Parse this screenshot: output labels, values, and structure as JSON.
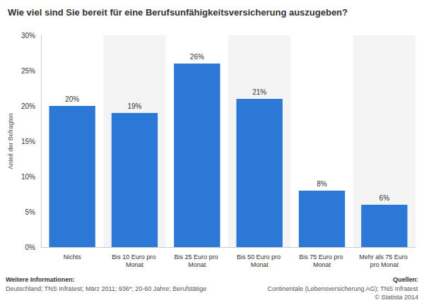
{
  "chart_data": {
    "type": "bar",
    "title": "Wie viel sind Sie bereit für eine Berufsunfähigkeitsversicherung auszugeben?",
    "ylabel": "Anteil der Befragten",
    "categories": [
      "Nichts",
      "Bis 10 Euro pro Monat",
      "Bis 25 Euro pro Monat",
      "Bis 50 Euro pro Monat",
      "Bis 75 Euro pro Monat",
      "Mehr als 75 Euro pro Monat"
    ],
    "values": [
      20,
      19,
      26,
      21,
      8,
      6
    ],
    "value_labels": [
      "20%",
      "19%",
      "26%",
      "21%",
      "8%",
      "6%"
    ],
    "data_labels": true,
    "color": "#2b78d6",
    "ylim": [
      0,
      30
    ],
    "yticks": [
      {
        "value": 0,
        "label": "0%"
      },
      {
        "value": 5,
        "label": "5%"
      },
      {
        "value": 10,
        "label": "10%"
      },
      {
        "value": 15,
        "label": "15%"
      },
      {
        "value": 20,
        "label": "20%"
      },
      {
        "value": 25,
        "label": "25%"
      },
      {
        "value": 30,
        "label": "30%"
      }
    ],
    "grid": true,
    "annotations": [
      "Weitere Informationen:",
      "Deutschland; TNS Infratest; März 2011; 936*; 20-60 Jahre; Berufstätige",
      "Quellen:",
      "Continentale (Lebensversicherung AG); TNS Infratest",
      "© Statista 2014"
    ]
  }
}
